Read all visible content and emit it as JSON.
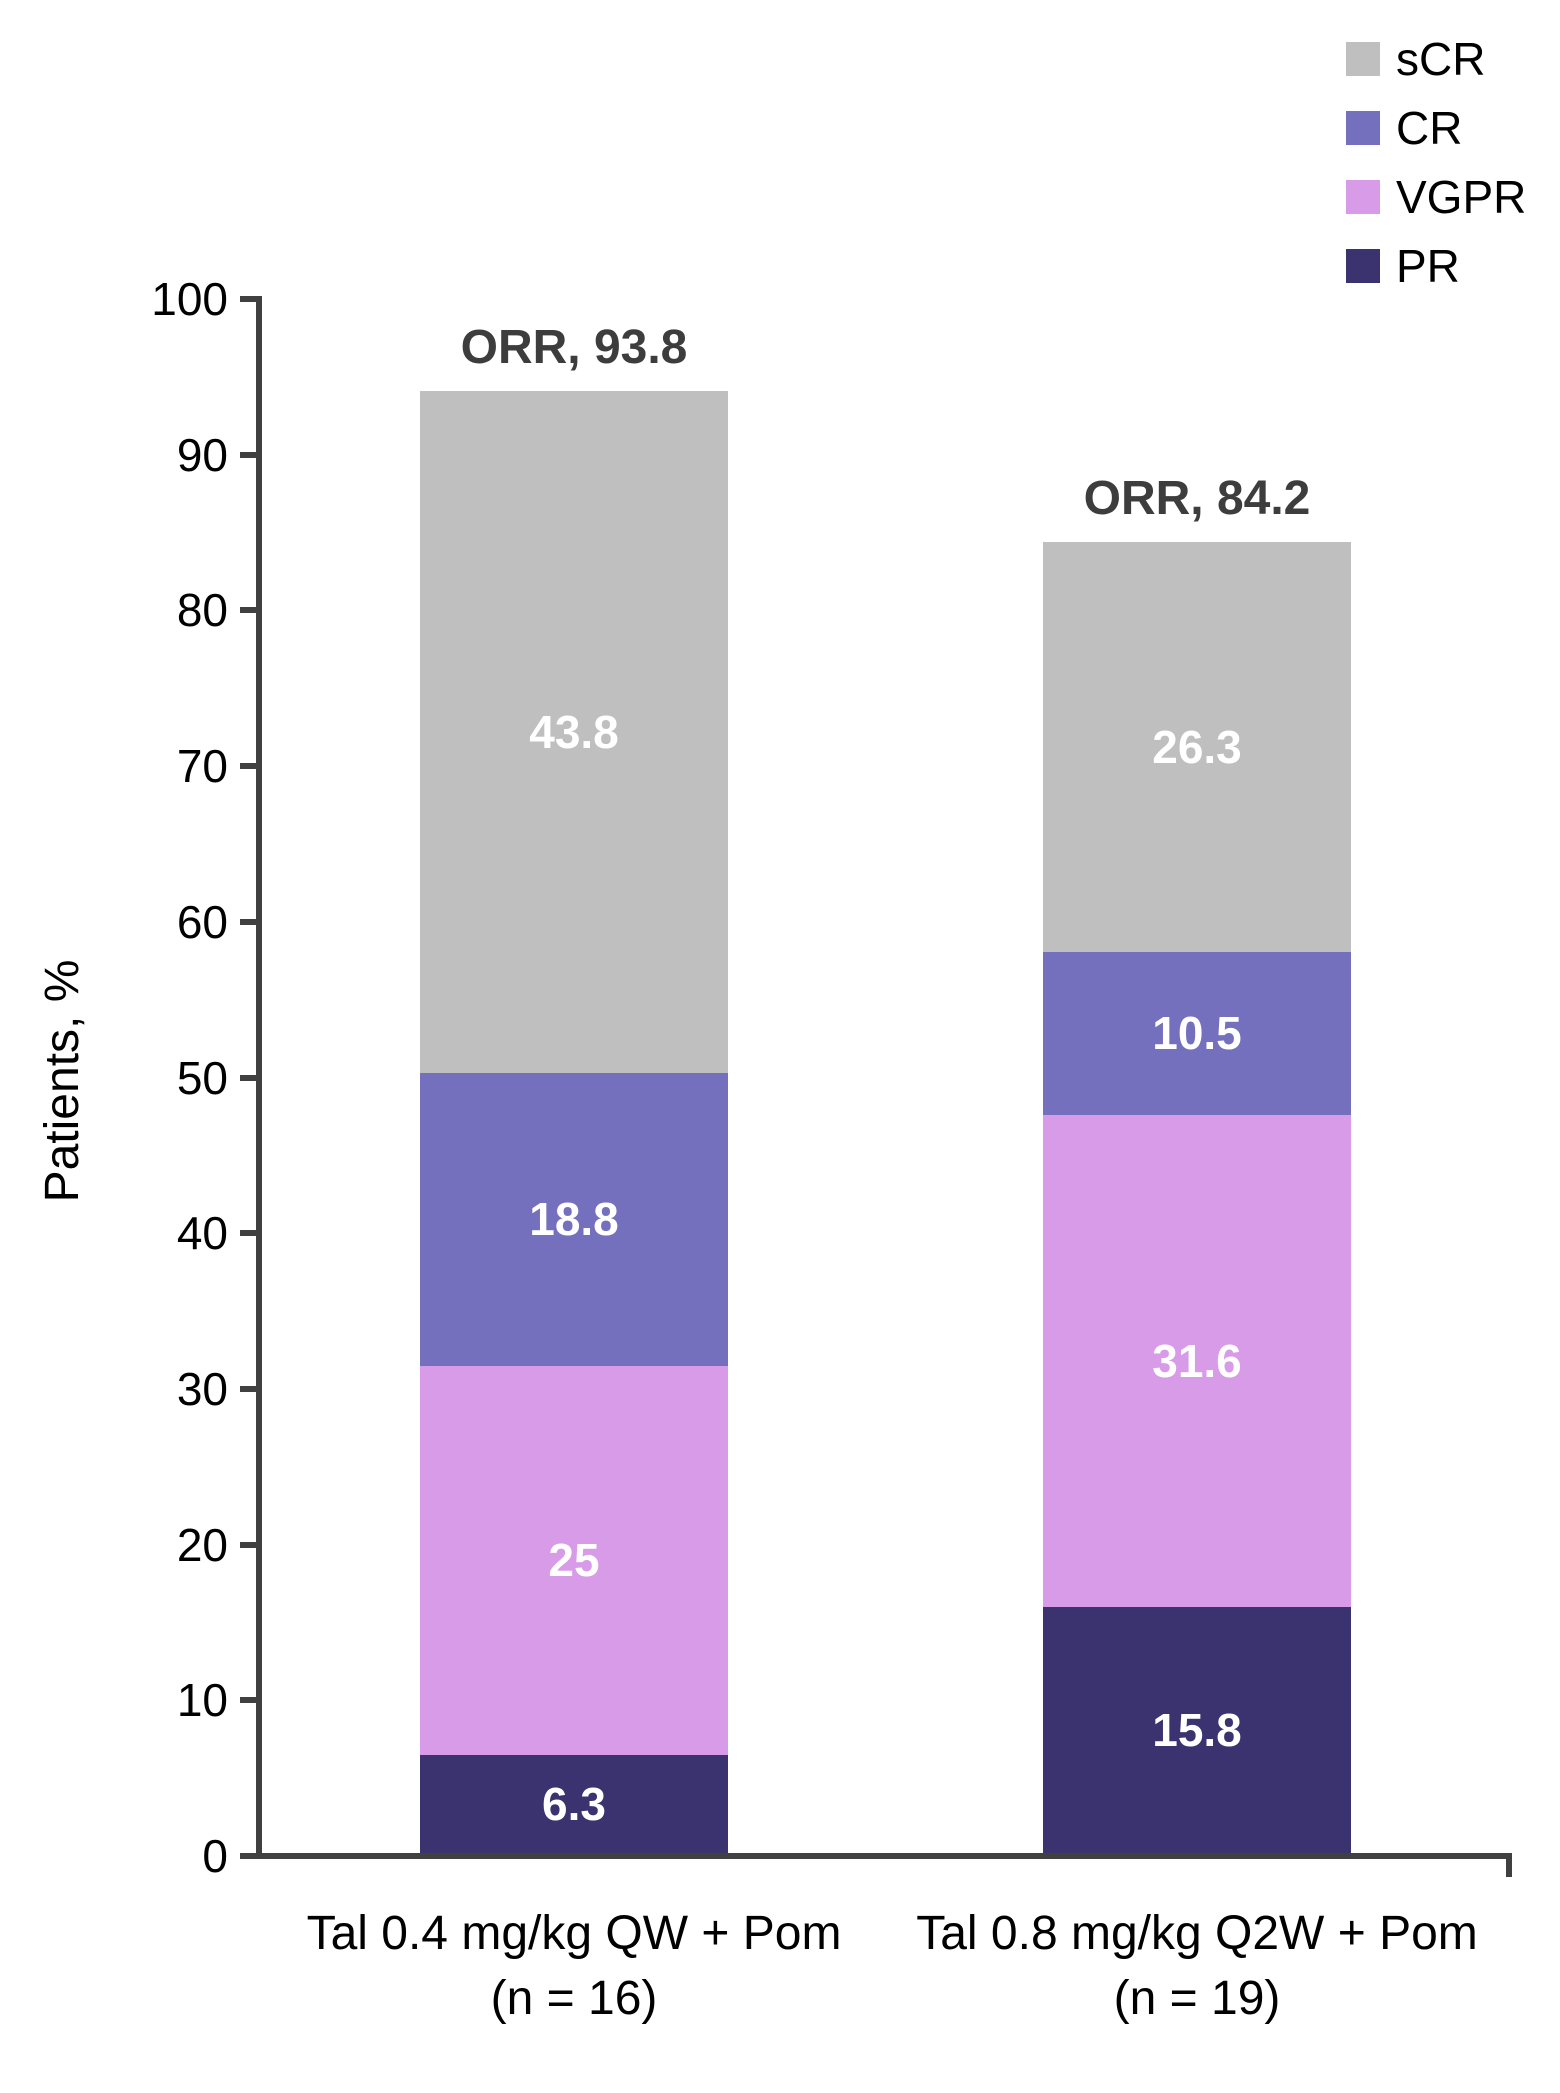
{
  "chart_data": {
    "type": "bar",
    "subtype": "stacked",
    "title": "",
    "ylabel": "Patients, %",
    "ylim": [
      0,
      100
    ],
    "yticks": [
      0,
      10,
      20,
      30,
      40,
      50,
      60,
      70,
      80,
      90,
      100
    ],
    "grid": false,
    "legend_position": "top-right",
    "legend": [
      {
        "label": "sCR",
        "color": "#BFBFBF"
      },
      {
        "label": "CR",
        "color": "#7470BE"
      },
      {
        "label": "VGPR",
        "color": "#D79BE8"
      },
      {
        "label": "PR",
        "color": "#3A336F"
      }
    ],
    "groups": [
      {
        "category_line1": "Tal 0.4 mg/kg QW + Pom",
        "category_line2": "(n = 16)",
        "orr_label": "ORR, 93.8",
        "orr_value": 93.8,
        "segments_bottom_to_top": [
          {
            "name": "PR",
            "value": 6.3,
            "label": "6.3"
          },
          {
            "name": "VGPR",
            "value": 25,
            "label": "25"
          },
          {
            "name": "CR",
            "value": 18.8,
            "label": "18.8"
          },
          {
            "name": "sCR",
            "value": 43.8,
            "label": "43.8"
          }
        ]
      },
      {
        "category_line1": "Tal 0.8 mg/kg Q2W + Pom",
        "category_line2": "(n = 19)",
        "orr_label": "ORR, 84.2",
        "orr_value": 84.2,
        "segments_bottom_to_top": [
          {
            "name": "PR",
            "value": 15.8,
            "label": "15.8"
          },
          {
            "name": "VGPR",
            "value": 31.6,
            "label": "31.6"
          },
          {
            "name": "CR",
            "value": 10.5,
            "label": "10.5"
          },
          {
            "name": "sCR",
            "value": 26.3,
            "label": "26.3"
          }
        ]
      }
    ],
    "colors": {
      "axis": "#404040",
      "tick_label": "#000000",
      "orr_text": "#3D3D3D",
      "segment_text": "#FFFFFF"
    }
  }
}
